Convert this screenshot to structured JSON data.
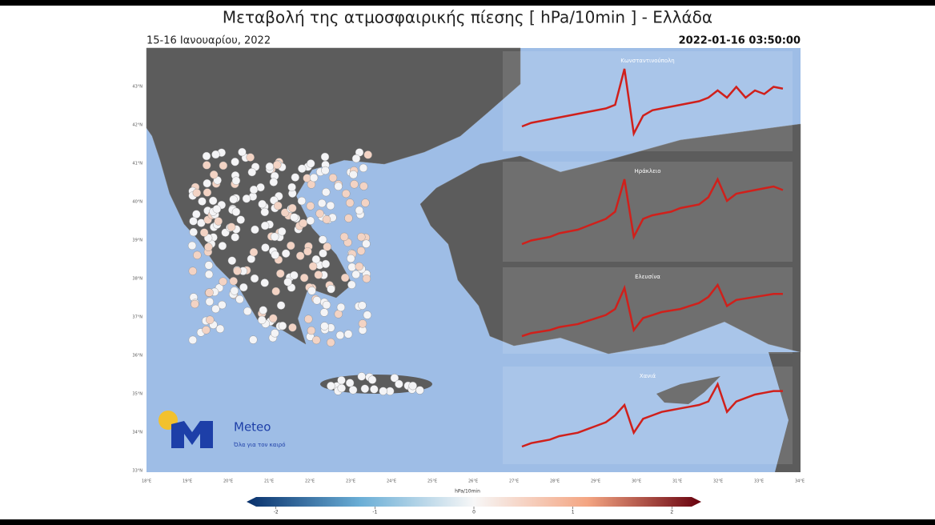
{
  "header": {
    "title": "Μεταβολή της ατμοσφαιρικής πίεσης [ hPa/10min ] - Ελλάδα",
    "subtitle": "15-16 Ιανουαρίου, 2022",
    "timestamp": "2022-01-16 03:50:00"
  },
  "map": {
    "lon_ticks": [
      "18°E",
      "19°E",
      "20°E",
      "21°E",
      "22°E",
      "23°E",
      "24°E",
      "25°E",
      "26°E",
      "27°E",
      "28°E",
      "29°E",
      "30°E",
      "31°E",
      "32°E",
      "33°E",
      "34°E"
    ],
    "lat_ticks": [
      "43°N",
      "42°N",
      "41°N",
      "40°N",
      "39°N",
      "38°N",
      "37°N",
      "36°N",
      "35°N",
      "34°N",
      "33°N"
    ]
  },
  "insets": [
    {
      "title": "Κωνσταντινούπολη",
      "values": [
        1008,
        1009,
        1009.5,
        1010,
        1010.5,
        1011,
        1011.5,
        1012,
        1012.5,
        1013,
        1014,
        1024,
        1006,
        1011,
        1012.5,
        1013,
        1013.5,
        1014,
        1014.5,
        1015,
        1016,
        1018,
        1016,
        1019,
        1016,
        1018,
        1017,
        1019,
        1018.5
      ]
    },
    {
      "title": "Ηράκλειο",
      "values": [
        1004,
        1005,
        1005.5,
        1006,
        1007,
        1007.5,
        1008,
        1009,
        1010,
        1011,
        1013,
        1022,
        1006,
        1011,
        1012,
        1012.5,
        1013,
        1014,
        1014.5,
        1015,
        1017,
        1022,
        1016,
        1018,
        1018.5,
        1019,
        1019.5,
        1020,
        1019
      ]
    },
    {
      "title": "Ελευσίνα",
      "values": [
        1005,
        1006,
        1006.5,
        1007,
        1008,
        1008.5,
        1009,
        1010,
        1011,
        1012,
        1014,
        1021,
        1007,
        1011,
        1012,
        1013,
        1013.5,
        1014,
        1015,
        1016,
        1018,
        1022,
        1015,
        1017,
        1017.5,
        1018,
        1018.5,
        1019,
        1019
      ]
    },
    {
      "title": "Χανιά",
      "values": [
        1004,
        1005,
        1005.5,
        1006,
        1007,
        1007.5,
        1008,
        1009,
        1010,
        1011,
        1013,
        1016,
        1008,
        1012,
        1013,
        1014,
        1014.5,
        1015,
        1015.5,
        1016,
        1017,
        1022,
        1014,
        1017,
        1018,
        1019,
        1019.5,
        1020,
        1020
      ]
    }
  ],
  "colorbar": {
    "label": "hPa/10min",
    "ticks": [
      -2,
      -1,
      0,
      1,
      2
    ],
    "lim": [
      -2.2,
      2.2
    ]
  },
  "logo": {
    "name": "Meteo",
    "tagline": "Όλα για τον καιρό"
  }
}
